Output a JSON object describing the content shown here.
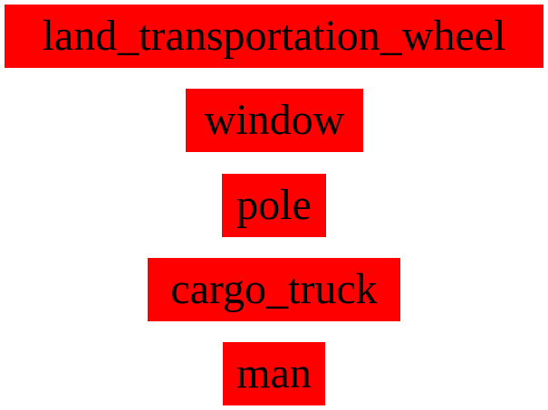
{
  "labels": [
    "land_transportation_wheel",
    "window",
    "pole",
    "cargo_truck",
    "man"
  ],
  "colors": {
    "label_background": "#ff0000",
    "label_text": "#000000",
    "page_background": "#ffffff"
  }
}
